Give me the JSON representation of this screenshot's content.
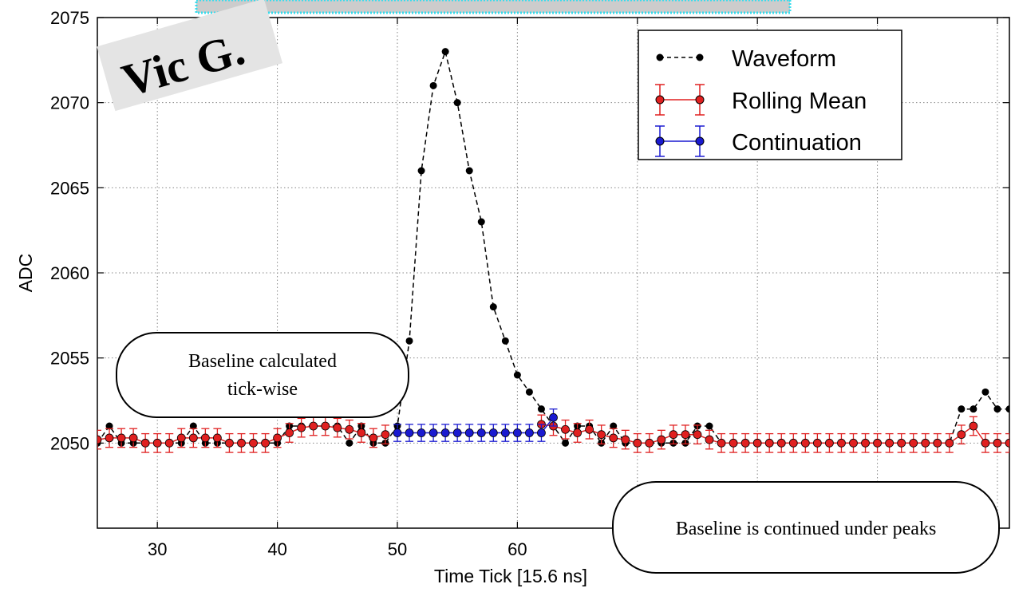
{
  "chart_data": {
    "type": "scatter",
    "title": "",
    "xlabel": "Time Tick [15.6 ns]",
    "ylabel": "ADC",
    "xlim": [
      25,
      101
    ],
    "ylim": [
      2045,
      2075
    ],
    "xticks": [
      30,
      40,
      50,
      60
    ],
    "yticks": [
      2050,
      2055,
      2060,
      2065,
      2070,
      2075
    ],
    "grid": true,
    "legend_position": "top-right",
    "series": [
      {
        "name": "Waveform",
        "style": "dashed-line-markers",
        "color": "#000000",
        "x": [
          25,
          26,
          27,
          28,
          29,
          30,
          31,
          32,
          33,
          34,
          35,
          36,
          37,
          38,
          39,
          40,
          41,
          42,
          43,
          44,
          45,
          46,
          47,
          48,
          49,
          50,
          51,
          52,
          53,
          54,
          55,
          56,
          57,
          58,
          59,
          60,
          61,
          62,
          63,
          64,
          65,
          66,
          67,
          68,
          69,
          70,
          71,
          72,
          73,
          74,
          75,
          76,
          77,
          78,
          79,
          80,
          81,
          82,
          83,
          84,
          85,
          86,
          87,
          88,
          89,
          90,
          91,
          92,
          93,
          94,
          95,
          96,
          97,
          98,
          99,
          100,
          101
        ],
        "y": [
          2050,
          2051,
          2050,
          2050,
          2050,
          2050,
          2050,
          2050,
          2051,
          2050,
          2050,
          2050,
          2050,
          2050,
          2050,
          2050,
          2051,
          2051,
          2051,
          2051,
          2051,
          2050,
          2051,
          2050,
          2050,
          2051,
          2056,
          2066,
          2071,
          2073,
          2070,
          2066,
          2063,
          2058,
          2056,
          2054,
          2053,
          2052,
          2051,
          2050,
          2051,
          2051,
          2050,
          2051,
          2050,
          2050,
          2050,
          2050,
          2050,
          2050,
          2051,
          2051,
          2050,
          2050,
          2050,
          2050,
          2050,
          2050,
          2050,
          2050,
          2050,
          2050,
          2050,
          2050,
          2050,
          2050,
          2050,
          2050,
          2050,
          2050,
          2050,
          2050,
          2052,
          2052,
          2053,
          2052,
          2052
        ]
      },
      {
        "name": "Rolling Mean",
        "style": "solid-line-markers-errorbars",
        "color": "#e02020",
        "x": [
          25,
          26,
          27,
          28,
          29,
          30,
          31,
          32,
          33,
          34,
          35,
          36,
          37,
          38,
          39,
          40,
          41,
          42,
          43,
          44,
          45,
          46,
          47,
          48,
          49,
          62,
          63,
          64,
          65,
          66,
          67,
          68,
          69,
          70,
          71,
          72,
          73,
          74,
          75,
          76,
          77,
          78,
          79,
          80,
          81,
          82,
          83,
          84,
          85,
          86,
          87,
          88,
          89,
          90,
          91,
          92,
          93,
          94,
          95,
          96,
          97,
          98,
          99,
          100,
          101
        ],
        "y": [
          2050.2,
          2050.3,
          2050.3,
          2050.3,
          2050,
          2050,
          2050,
          2050.3,
          2050.3,
          2050.3,
          2050.3,
          2050,
          2050,
          2050,
          2050,
          2050.3,
          2050.6,
          2050.9,
          2051,
          2051,
          2050.9,
          2050.8,
          2050.6,
          2050.3,
          2050.5,
          2051.1,
          2051.0,
          2050.8,
          2050.6,
          2050.8,
          2050.5,
          2050.3,
          2050.2,
          2050,
          2050,
          2050.2,
          2050.5,
          2050.5,
          2050.5,
          2050.2,
          2050,
          2050,
          2050,
          2050,
          2050,
          2050,
          2050,
          2050,
          2050,
          2050,
          2050,
          2050,
          2050,
          2050,
          2050,
          2050,
          2050,
          2050,
          2050,
          2050,
          2050.5,
          2051,
          2050,
          2050,
          2050
        ],
        "yerr": 0.55
      },
      {
        "name": "Continuation",
        "style": "solid-line-markers-errorbars",
        "color": "#1a1ad0",
        "x": [
          50,
          51,
          52,
          53,
          54,
          55,
          56,
          57,
          58,
          59,
          60,
          61,
          62,
          63
        ],
        "y": [
          2050.6,
          2050.6,
          2050.6,
          2050.6,
          2050.6,
          2050.6,
          2050.6,
          2050.6,
          2050.6,
          2050.6,
          2050.6,
          2050.6,
          2050.6,
          2051.5
        ],
        "yerr": 0.5
      }
    ]
  },
  "annotations": {
    "callout_left_line1": "Baseline calculated",
    "callout_left_line2": "tick-wise",
    "callout_right": "Baseline is continued under peaks",
    "stamp": "Vic G."
  },
  "colors": {
    "waveform": "#000000",
    "rolling_mean": "#e02020",
    "continuation": "#1a1ad0",
    "stamp_background": "#e4e4e4",
    "top_banner_border": "#33ddee",
    "top_banner_fill": "#cccccc"
  }
}
